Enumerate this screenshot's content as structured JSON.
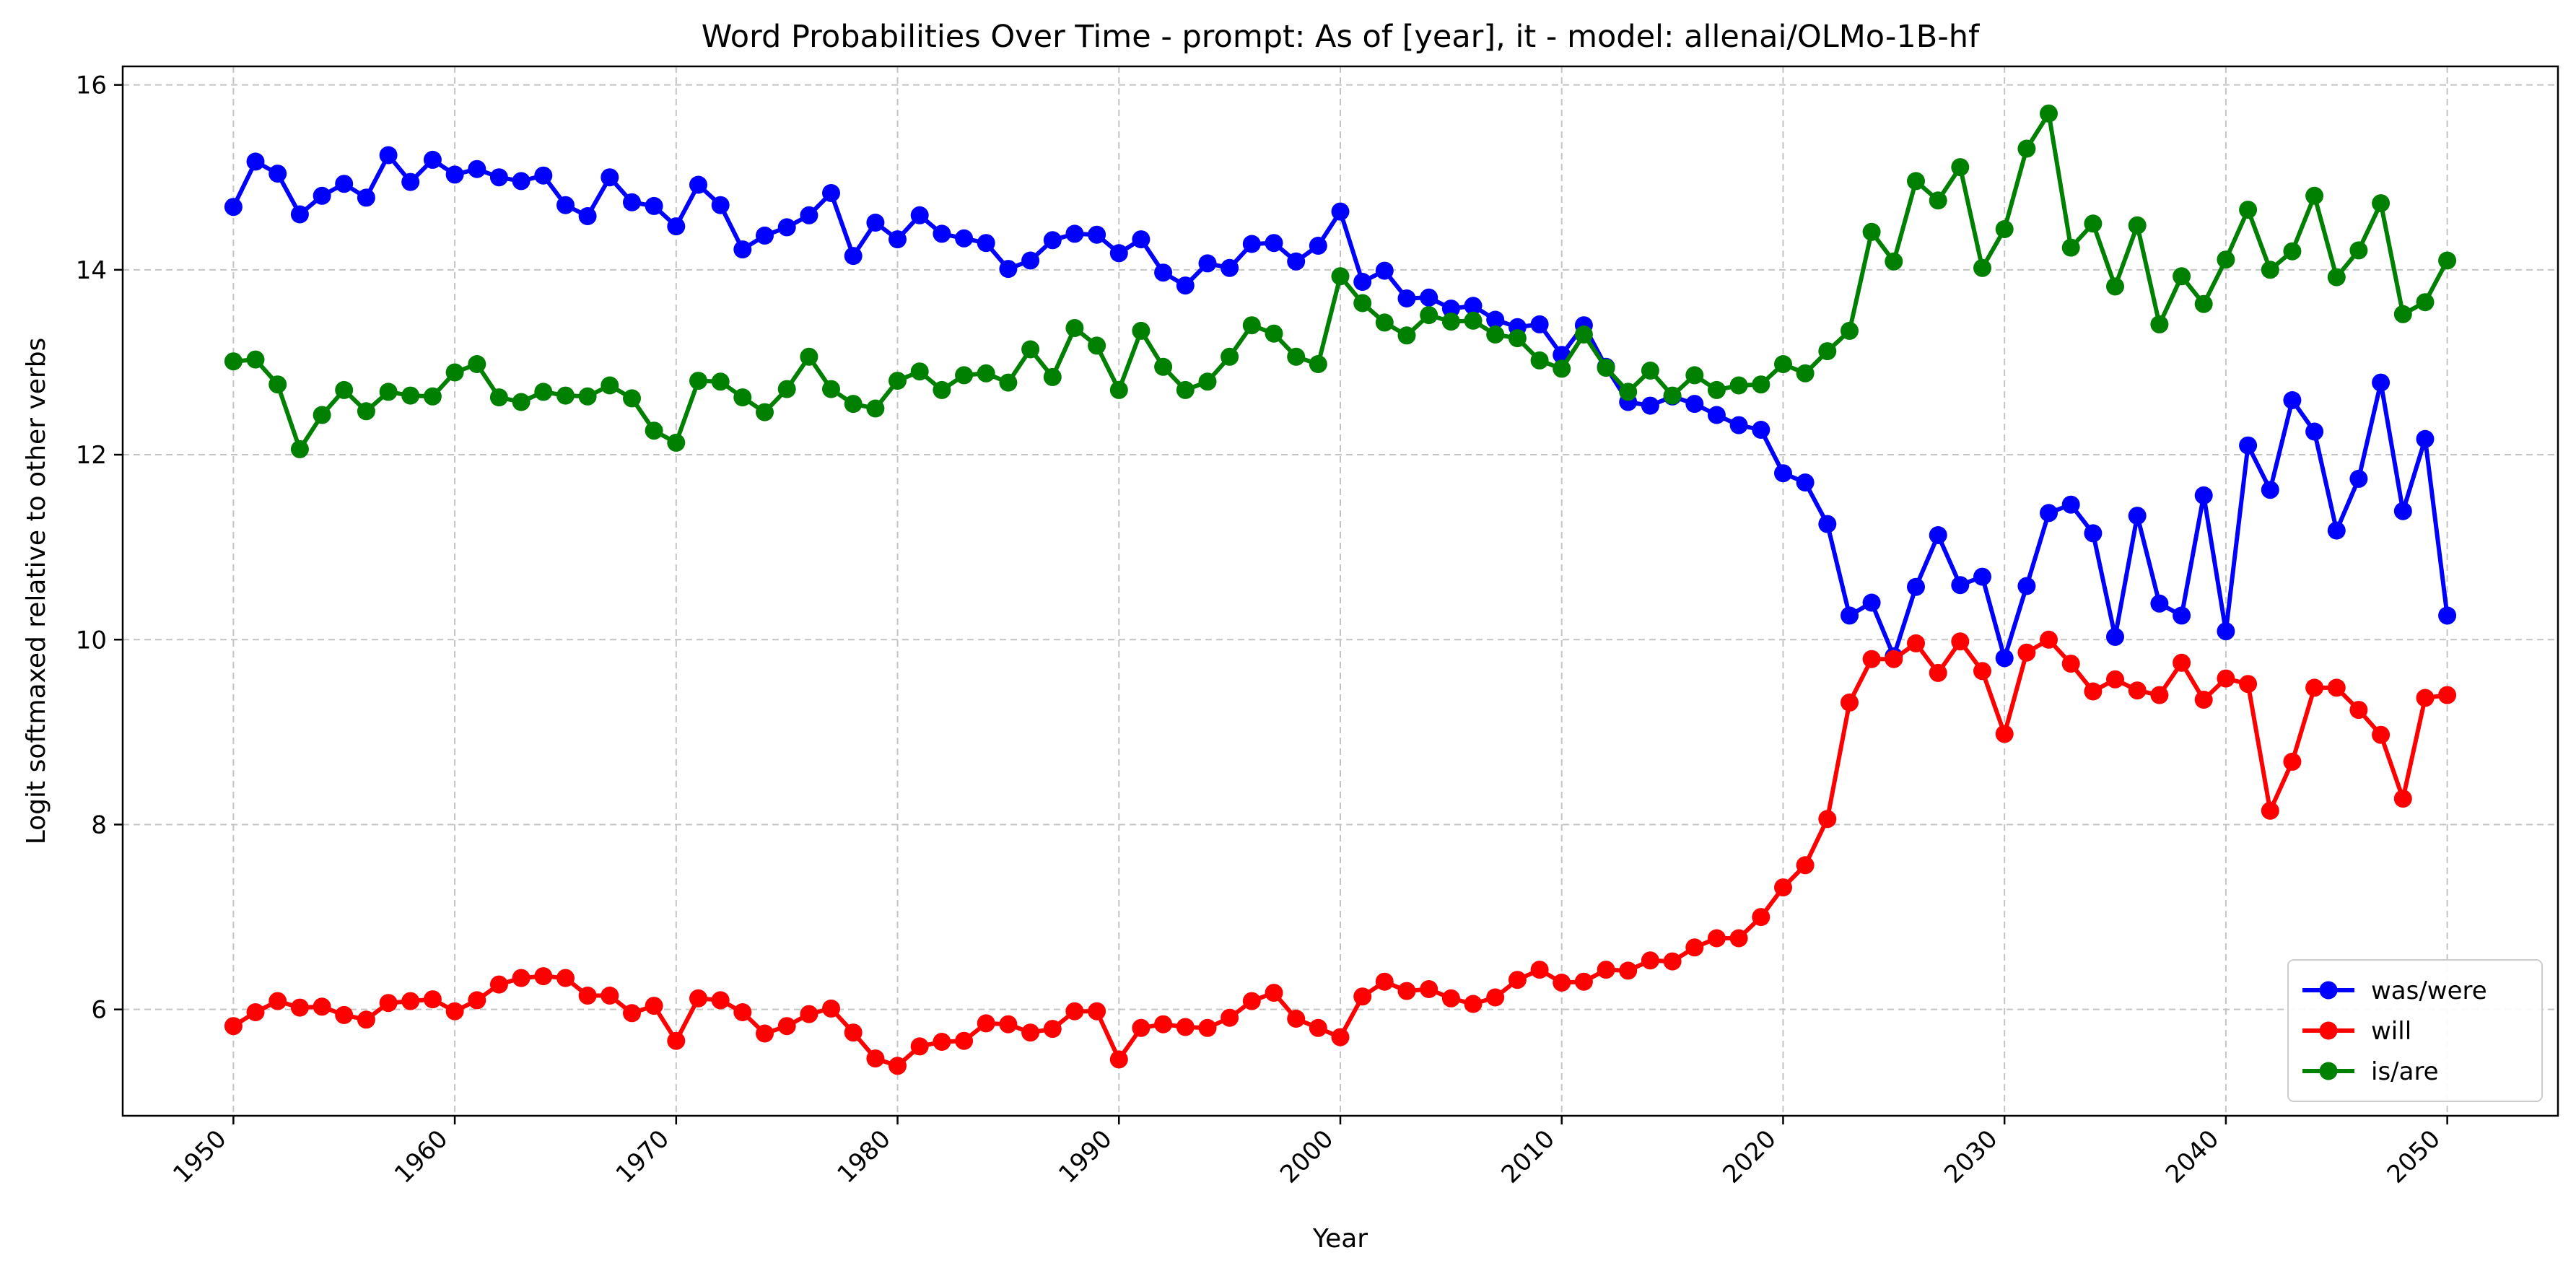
{
  "chart_data": {
    "type": "line",
    "title": "Word Probabilities Over Time - prompt: As of [year], it - model: allenai/OLMo-1B-hf",
    "xlabel": "Year",
    "ylabel": "Logit softmaxed relative to other verbs",
    "xlim": [
      1945,
      2055
    ],
    "ylim": [
      4.85,
      16.2
    ],
    "xticks": [
      1950,
      1960,
      1970,
      1980,
      1990,
      2000,
      2010,
      2020,
      2030,
      2040,
      2050
    ],
    "yticks": [
      6,
      8,
      10,
      12,
      14,
      16
    ],
    "grid": true,
    "legend_position": "lower-right",
    "x_start": 1950,
    "series": [
      {
        "name": "was/were",
        "color": "#0000ff",
        "values": [
          14.68,
          15.17,
          15.04,
          14.6,
          14.8,
          14.93,
          14.78,
          15.24,
          14.95,
          15.19,
          15.03,
          15.09,
          15.0,
          14.96,
          15.02,
          14.7,
          14.58,
          15.0,
          14.73,
          14.69,
          14.47,
          14.92,
          14.7,
          14.22,
          14.37,
          14.46,
          14.59,
          14.83,
          14.15,
          14.51,
          14.33,
          14.59,
          14.39,
          14.34,
          14.29,
          14.01,
          14.1,
          14.32,
          14.39,
          14.38,
          14.18,
          14.33,
          13.97,
          13.83,
          14.07,
          14.02,
          14.28,
          14.29,
          14.09,
          14.26,
          14.63,
          13.87,
          13.99,
          13.69,
          13.7,
          13.58,
          13.61,
          13.46,
          13.38,
          13.41,
          13.08,
          13.4,
          12.95,
          12.57,
          12.53,
          12.63,
          12.55,
          12.43,
          12.32,
          12.27,
          11.8,
          11.7,
          11.25,
          10.26,
          10.4,
          9.82,
          10.57,
          11.13,
          10.59,
          10.68,
          9.8,
          10.58,
          11.37,
          11.46,
          11.15,
          10.03,
          11.34,
          10.39,
          10.26,
          11.56,
          10.09,
          12.1,
          11.62,
          12.59,
          12.25,
          11.18,
          11.74,
          12.78,
          11.39,
          12.17,
          10.26
        ]
      },
      {
        "name": "will",
        "color": "#ff0000",
        "values": [
          5.82,
          5.97,
          6.09,
          6.02,
          6.03,
          5.94,
          5.89,
          6.07,
          6.09,
          6.11,
          5.98,
          6.1,
          6.27,
          6.34,
          6.36,
          6.34,
          6.15,
          6.15,
          5.96,
          6.04,
          5.66,
          6.12,
          6.1,
          5.97,
          5.74,
          5.82,
          5.95,
          6.01,
          5.75,
          5.47,
          5.39,
          5.6,
          5.65,
          5.66,
          5.85,
          5.84,
          5.75,
          5.79,
          5.98,
          5.98,
          5.46,
          5.8,
          5.84,
          5.81,
          5.8,
          5.91,
          6.09,
          6.18,
          5.9,
          5.8,
          5.7,
          6.14,
          6.3,
          6.2,
          6.22,
          6.12,
          6.06,
          6.13,
          6.32,
          6.43,
          6.29,
          6.3,
          6.43,
          6.42,
          6.53,
          6.52,
          6.67,
          6.77,
          6.77,
          7.0,
          7.32,
          7.56,
          8.06,
          9.32,
          9.79,
          9.79,
          9.96,
          9.64,
          9.98,
          9.66,
          8.98,
          9.86,
          10.0,
          9.74,
          9.44,
          9.57,
          9.45,
          9.4,
          9.75,
          9.35,
          9.58,
          9.52,
          8.15,
          8.68,
          9.48,
          9.48,
          9.24,
          8.97,
          8.28,
          9.37,
          9.4
        ]
      },
      {
        "name": "is/are",
        "color": "#008000",
        "values": [
          13.01,
          13.03,
          12.76,
          12.06,
          12.43,
          12.7,
          12.47,
          12.68,
          12.64,
          12.63,
          12.89,
          12.98,
          12.62,
          12.57,
          12.68,
          12.64,
          12.63,
          12.75,
          12.61,
          12.26,
          12.13,
          12.8,
          12.79,
          12.62,
          12.46,
          12.71,
          13.06,
          12.71,
          12.55,
          12.5,
          12.8,
          12.9,
          12.7,
          12.86,
          12.88,
          12.78,
          13.14,
          12.84,
          13.37,
          13.18,
          12.7,
          13.34,
          12.95,
          12.7,
          12.79,
          13.06,
          13.4,
          13.31,
          13.06,
          12.98,
          13.93,
          13.64,
          13.43,
          13.29,
          13.51,
          13.44,
          13.45,
          13.3,
          13.26,
          13.02,
          12.93,
          13.3,
          12.94,
          12.68,
          12.91,
          12.64,
          12.86,
          12.7,
          12.75,
          12.76,
          12.98,
          12.88,
          13.12,
          13.34,
          14.41,
          14.09,
          14.96,
          14.75,
          15.11,
          14.02,
          14.44,
          15.31,
          15.69,
          14.24,
          14.5,
          13.82,
          14.48,
          13.41,
          13.93,
          13.63,
          14.11,
          14.65,
          14.0,
          14.2,
          14.8,
          13.92,
          14.21,
          14.72,
          13.52,
          13.65,
          14.1
        ]
      }
    ]
  }
}
